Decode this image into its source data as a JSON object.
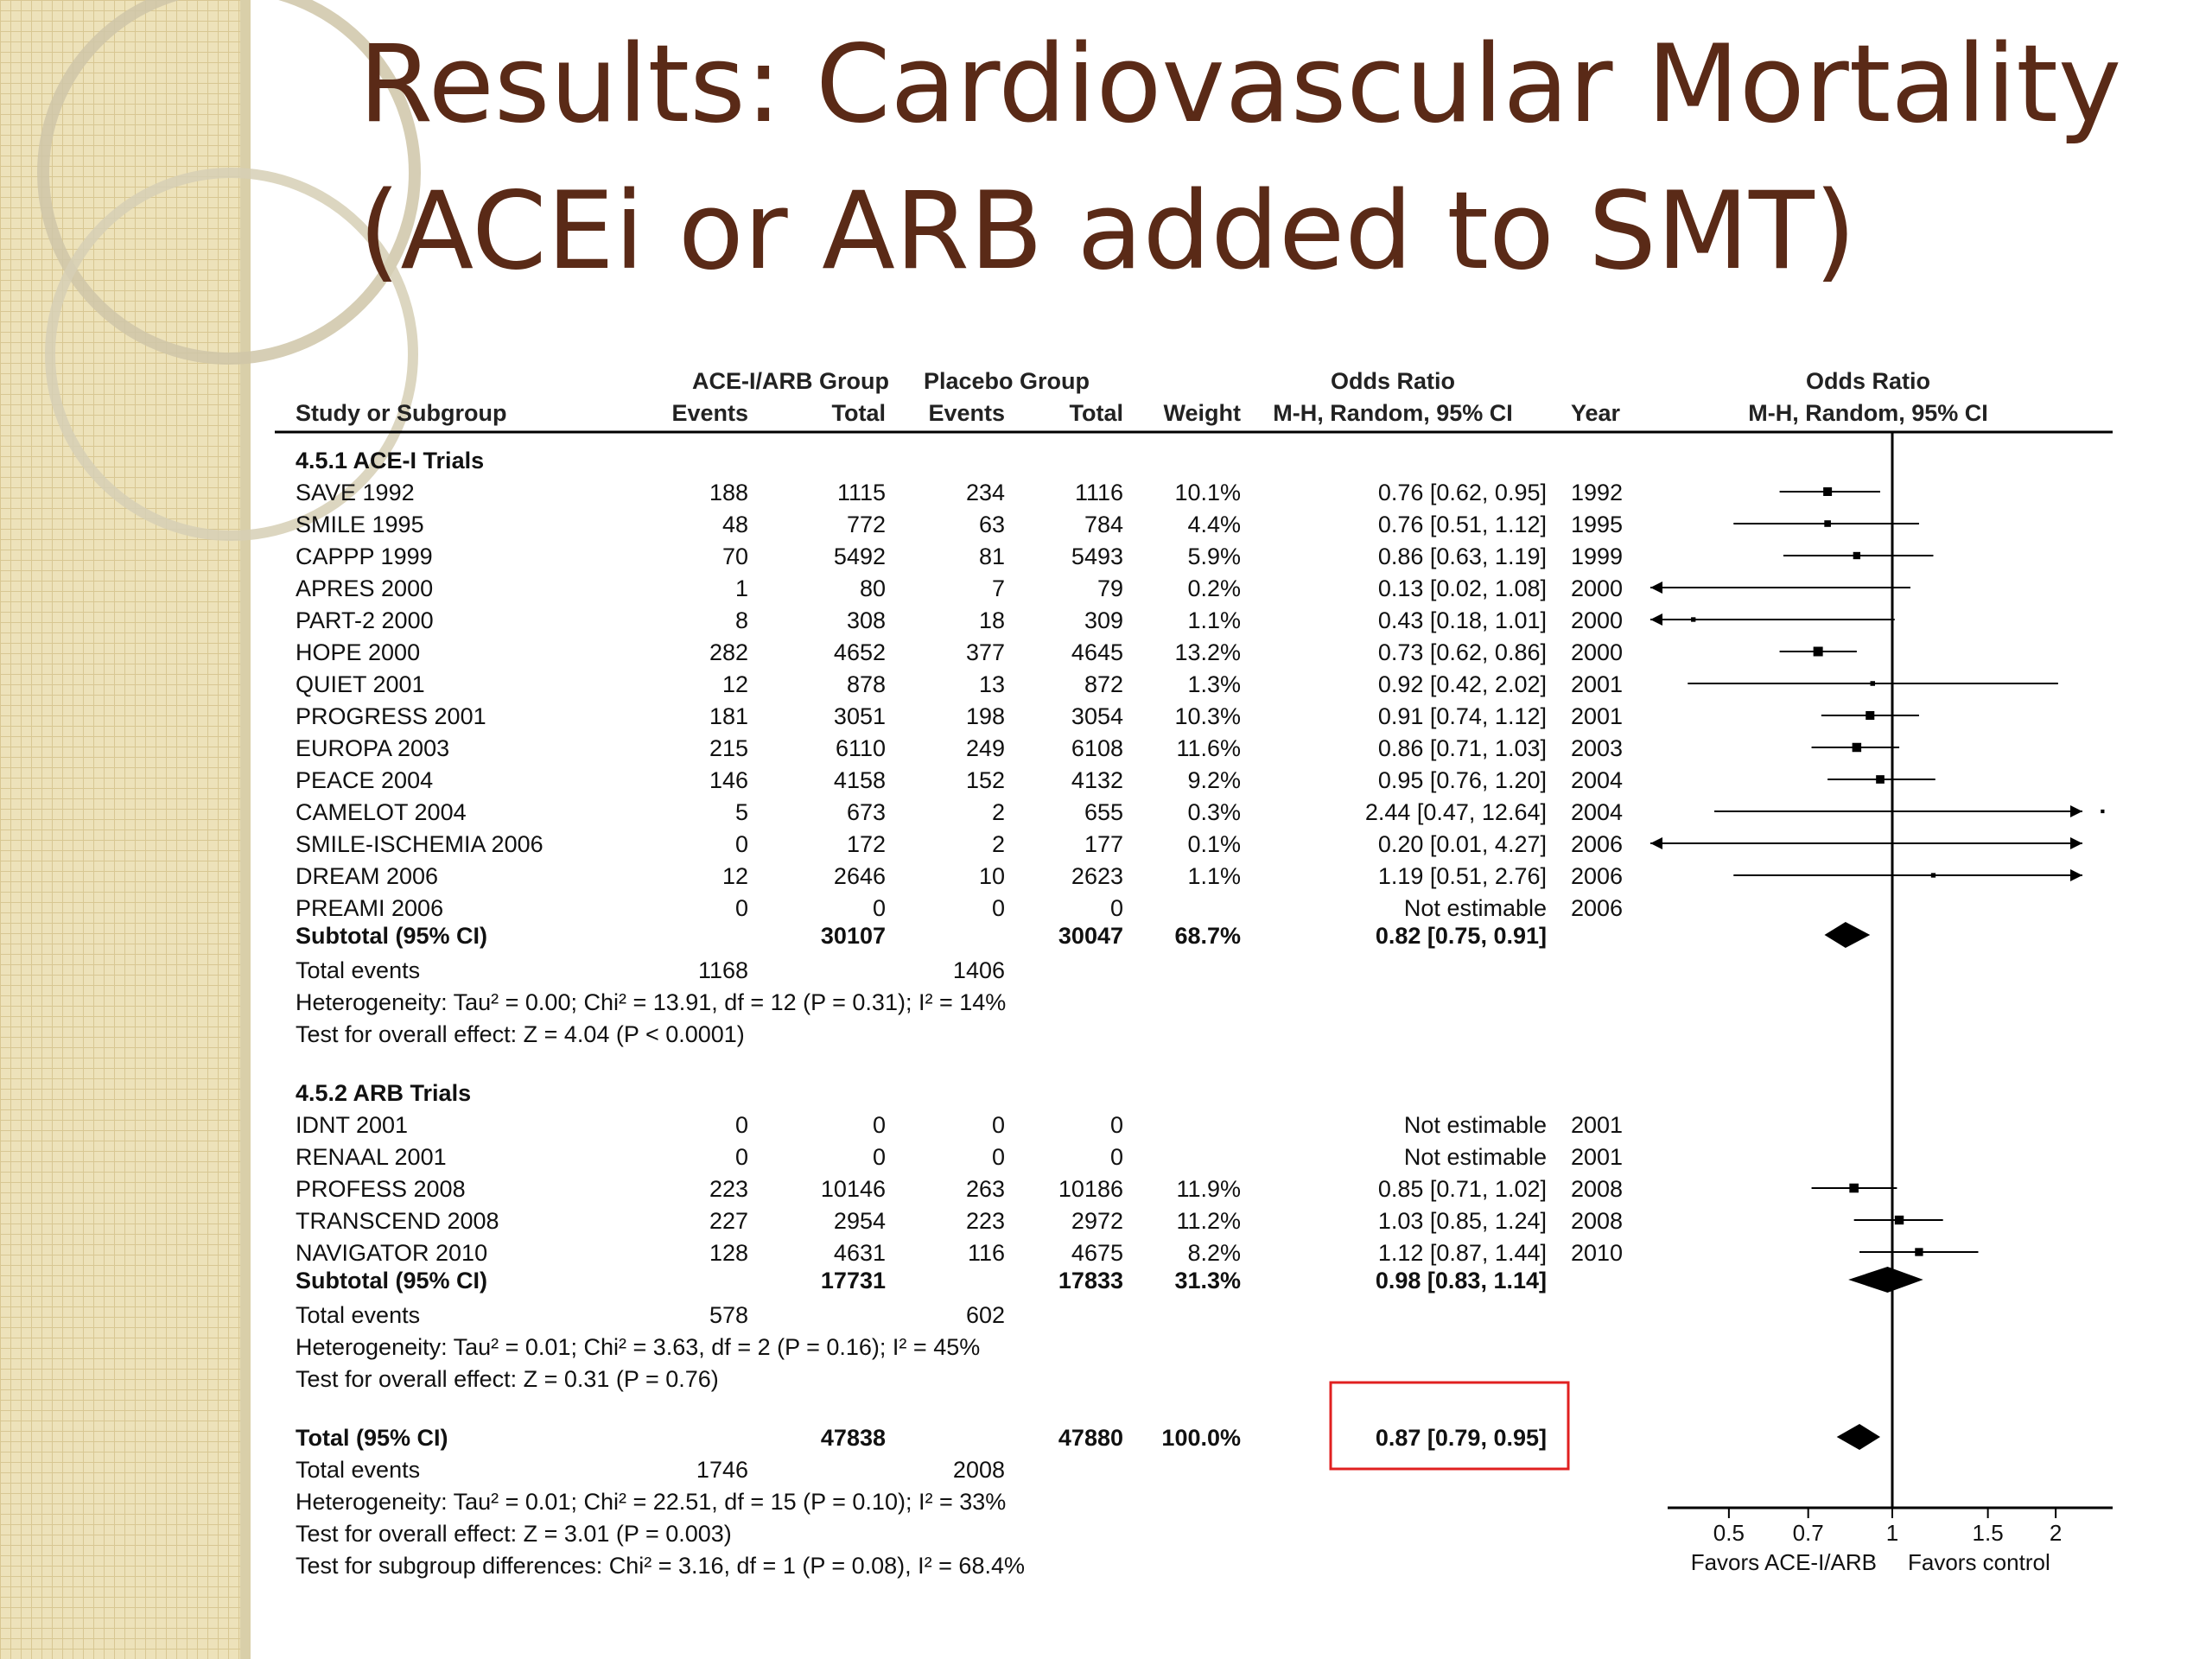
{
  "slide": {
    "title_line1": "Results: Cardiovascular Mortality",
    "title_line2": "(ACEi or ARB added to SMT)",
    "colors": {
      "title": "#5a2a17",
      "sidebar": "#ede2ba",
      "sidebar_grid": "#d6c592",
      "highlight_box": "#e02020"
    }
  },
  "table": {
    "header1": {
      "exp_group": "ACE-I/ARB Group",
      "ctrl_group": "Placebo Group",
      "or_col": "Odds Ratio",
      "plot_col": "Odds Ratio"
    },
    "header2": {
      "study": "Study or Subgroup",
      "exp_events": "Events",
      "exp_total": "Total",
      "ctrl_events": "Events",
      "ctrl_total": "Total",
      "weight": "Weight",
      "or_method": "M-H, Random, 95% CI",
      "year": "Year",
      "plot_method": "M-H, Random, 95% CI"
    },
    "lines": [
      {
        "kind": "group",
        "label": "4.5.1 ACE-I Trials"
      },
      {
        "kind": "study",
        "study": "SAVE 1992",
        "e_ev": "188",
        "e_tot": "1115",
        "c_ev": "234",
        "c_tot": "1116",
        "weight": "10.1%",
        "ci": "0.76 [0.62, 0.95]",
        "year": "1992"
      },
      {
        "kind": "study",
        "study": "SMILE 1995",
        "e_ev": "48",
        "e_tot": "772",
        "c_ev": "63",
        "c_tot": "784",
        "weight": "4.4%",
        "ci": "0.76 [0.51, 1.12]",
        "year": "1995"
      },
      {
        "kind": "study",
        "study": "CAPPP 1999",
        "e_ev": "70",
        "e_tot": "5492",
        "c_ev": "81",
        "c_tot": "5493",
        "weight": "5.9%",
        "ci": "0.86 [0.63, 1.19]",
        "year": "1999"
      },
      {
        "kind": "study",
        "study": "APRES 2000",
        "e_ev": "1",
        "e_tot": "80",
        "c_ev": "7",
        "c_tot": "79",
        "weight": "0.2%",
        "ci": "0.13 [0.02, 1.08]",
        "year": "2000"
      },
      {
        "kind": "study",
        "study": "PART-2 2000",
        "e_ev": "8",
        "e_tot": "308",
        "c_ev": "18",
        "c_tot": "309",
        "weight": "1.1%",
        "ci": "0.43 [0.18, 1.01]",
        "year": "2000"
      },
      {
        "kind": "study",
        "study": "HOPE 2000",
        "e_ev": "282",
        "e_tot": "4652",
        "c_ev": "377",
        "c_tot": "4645",
        "weight": "13.2%",
        "ci": "0.73 [0.62, 0.86]",
        "year": "2000"
      },
      {
        "kind": "study",
        "study": "QUIET 2001",
        "e_ev": "12",
        "e_tot": "878",
        "c_ev": "13",
        "c_tot": "872",
        "weight": "1.3%",
        "ci": "0.92 [0.42, 2.02]",
        "year": "2001"
      },
      {
        "kind": "study",
        "study": "PROGRESS 2001",
        "e_ev": "181",
        "e_tot": "3051",
        "c_ev": "198",
        "c_tot": "3054",
        "weight": "10.3%",
        "ci": "0.91 [0.74, 1.12]",
        "year": "2001"
      },
      {
        "kind": "study",
        "study": "EUROPA 2003",
        "e_ev": "215",
        "e_tot": "6110",
        "c_ev": "249",
        "c_tot": "6108",
        "weight": "11.6%",
        "ci": "0.86 [0.71, 1.03]",
        "year": "2003"
      },
      {
        "kind": "study",
        "study": "PEACE 2004",
        "e_ev": "146",
        "e_tot": "4158",
        "c_ev": "152",
        "c_tot": "4132",
        "weight": "9.2%",
        "ci": "0.95 [0.76, 1.20]",
        "year": "2004"
      },
      {
        "kind": "study",
        "study": "CAMELOT 2004",
        "e_ev": "5",
        "e_tot": "673",
        "c_ev": "2",
        "c_tot": "655",
        "weight": "0.3%",
        "ci": "2.44 [0.47, 12.64]",
        "year": "2004"
      },
      {
        "kind": "study",
        "study": "SMILE-ISCHEMIA 2006",
        "e_ev": "0",
        "e_tot": "172",
        "c_ev": "2",
        "c_tot": "177",
        "weight": "0.1%",
        "ci": "0.20 [0.01, 4.27]",
        "year": "2006"
      },
      {
        "kind": "study",
        "study": "DREAM 2006",
        "e_ev": "12",
        "e_tot": "2646",
        "c_ev": "10",
        "c_tot": "2623",
        "weight": "1.1%",
        "ci": "1.19 [0.51, 2.76]",
        "year": "2006"
      },
      {
        "kind": "study",
        "study": "PREAMI 2006",
        "e_ev": "0",
        "e_tot": "0",
        "c_ev": "0",
        "c_tot": "0",
        "weight": "",
        "ci": "Not estimable",
        "year": "2006"
      },
      {
        "kind": "subtotal",
        "study": "Subtotal (95% CI)",
        "e_tot": "30107",
        "c_tot": "30047",
        "weight": "68.7%",
        "ci": "0.82 [0.75, 0.91]"
      },
      {
        "kind": "events",
        "study": "Total events",
        "e_ev": "1168",
        "c_ev": "1406"
      },
      {
        "kind": "text",
        "label": "Heterogeneity: Tau² = 0.00; Chi² = 13.91, df = 12 (P = 0.31); I² = 14%"
      },
      {
        "kind": "text",
        "label": "Test for overall effect: Z = 4.04 (P < 0.0001)"
      },
      {
        "kind": "group",
        "label": "4.5.2 ARB Trials"
      },
      {
        "kind": "study",
        "study": "IDNT 2001",
        "e_ev": "0",
        "e_tot": "0",
        "c_ev": "0",
        "c_tot": "0",
        "weight": "",
        "ci": "Not estimable",
        "year": "2001"
      },
      {
        "kind": "study",
        "study": "RENAAL 2001",
        "e_ev": "0",
        "e_tot": "0",
        "c_ev": "0",
        "c_tot": "0",
        "weight": "",
        "ci": "Not estimable",
        "year": "2001"
      },
      {
        "kind": "study",
        "study": "PROFESS 2008",
        "e_ev": "223",
        "e_tot": "10146",
        "c_ev": "263",
        "c_tot": "10186",
        "weight": "11.9%",
        "ci": "0.85 [0.71, 1.02]",
        "year": "2008"
      },
      {
        "kind": "study",
        "study": "TRANSCEND 2008",
        "e_ev": "227",
        "e_tot": "2954",
        "c_ev": "223",
        "c_tot": "2972",
        "weight": "11.2%",
        "ci": "1.03 [0.85, 1.24]",
        "year": "2008"
      },
      {
        "kind": "study",
        "study": "NAVIGATOR 2010",
        "e_ev": "128",
        "e_tot": "4631",
        "c_ev": "116",
        "c_tot": "4675",
        "weight": "8.2%",
        "ci": "1.12 [0.87, 1.44]",
        "year": "2010"
      },
      {
        "kind": "subtotal",
        "study": "Subtotal (95% CI)",
        "e_tot": "17731",
        "c_tot": "17833",
        "weight": "31.3%",
        "ci": "0.98 [0.83, 1.14]"
      },
      {
        "kind": "events",
        "study": "Total events",
        "e_ev": "578",
        "c_ev": "602"
      },
      {
        "kind": "text",
        "label": "Heterogeneity: Tau² = 0.01; Chi² = 3.63, df = 2 (P = 0.16); I² = 45%"
      },
      {
        "kind": "text",
        "label": "Test for overall effect: Z = 0.31 (P = 0.76)"
      },
      {
        "kind": "total",
        "study": "Total (95% CI)",
        "e_tot": "47838",
        "c_tot": "47880",
        "weight": "100.0%",
        "ci": "0.87 [0.79, 0.95]"
      },
      {
        "kind": "events",
        "study": "Total events",
        "e_ev": "1746",
        "c_ev": "2008"
      },
      {
        "kind": "text",
        "label": "Heterogeneity: Tau² = 0.01; Chi² = 22.51, df = 15 (P = 0.10); I² = 33%"
      },
      {
        "kind": "text",
        "label": "Test for overall effect: Z = 3.01 (P = 0.003)"
      },
      {
        "kind": "text",
        "label": "Test for subgroup differences: Chi² = 3.16, df = 1 (P = 0.08), I² = 68.4%"
      }
    ]
  },
  "chart_data": {
    "type": "forest",
    "scale": "log",
    "xlim": [
      0.4,
      2.5
    ],
    "ticks": [
      "0.5",
      "0.7",
      "1",
      "1.5",
      "2"
    ],
    "tick_values": [
      0.5,
      0.7,
      1,
      1.5,
      2
    ],
    "reference_line": 1,
    "favors_left": "Favors ACE-I/ARB",
    "favors_right": "Favors control",
    "studies": [
      {
        "study": "SAVE 1992",
        "or": 0.76,
        "lo": 0.62,
        "hi": 0.95,
        "weight": 10.1
      },
      {
        "study": "SMILE 1995",
        "or": 0.76,
        "lo": 0.51,
        "hi": 1.12,
        "weight": 4.4
      },
      {
        "study": "CAPPP 1999",
        "or": 0.86,
        "lo": 0.63,
        "hi": 1.19,
        "weight": 5.9
      },
      {
        "study": "APRES 2000",
        "or": 0.13,
        "lo": 0.02,
        "hi": 1.08,
        "weight": 0.2
      },
      {
        "study": "PART-2 2000",
        "or": 0.43,
        "lo": 0.18,
        "hi": 1.01,
        "weight": 1.1
      },
      {
        "study": "HOPE 2000",
        "or": 0.73,
        "lo": 0.62,
        "hi": 0.86,
        "weight": 13.2
      },
      {
        "study": "QUIET 2001",
        "or": 0.92,
        "lo": 0.42,
        "hi": 2.02,
        "weight": 1.3
      },
      {
        "study": "PROGRESS 2001",
        "or": 0.91,
        "lo": 0.74,
        "hi": 1.12,
        "weight": 10.3
      },
      {
        "study": "EUROPA 2003",
        "or": 0.86,
        "lo": 0.71,
        "hi": 1.03,
        "weight": 11.6
      },
      {
        "study": "PEACE 2004",
        "or": 0.95,
        "lo": 0.76,
        "hi": 1.2,
        "weight": 9.2
      },
      {
        "study": "CAMELOT 2004",
        "or": 2.44,
        "lo": 0.47,
        "hi": 12.64,
        "weight": 0.3
      },
      {
        "study": "SMILE-ISCHEMIA 2006",
        "or": 0.2,
        "lo": 0.01,
        "hi": 4.27,
        "weight": 0.1
      },
      {
        "study": "DREAM 2006",
        "or": 1.19,
        "lo": 0.51,
        "hi": 2.76,
        "weight": 1.1
      },
      {
        "study": "PROFESS 2008",
        "or": 0.85,
        "lo": 0.71,
        "hi": 1.02,
        "weight": 11.9
      },
      {
        "study": "TRANSCEND 2008",
        "or": 1.03,
        "lo": 0.85,
        "hi": 1.24,
        "weight": 11.2
      },
      {
        "study": "NAVIGATOR 2010",
        "or": 1.12,
        "lo": 0.87,
        "hi": 1.44,
        "weight": 8.2
      }
    ],
    "pooled": [
      {
        "label": "Subtotal (95% CI)",
        "or": 0.82,
        "lo": 0.75,
        "hi": 0.91
      },
      {
        "label": "Subtotal (95% CI)",
        "or": 0.98,
        "lo": 0.83,
        "hi": 1.14
      },
      {
        "label": "Total (95% CI)",
        "or": 0.87,
        "lo": 0.79,
        "hi": 0.95
      }
    ]
  }
}
